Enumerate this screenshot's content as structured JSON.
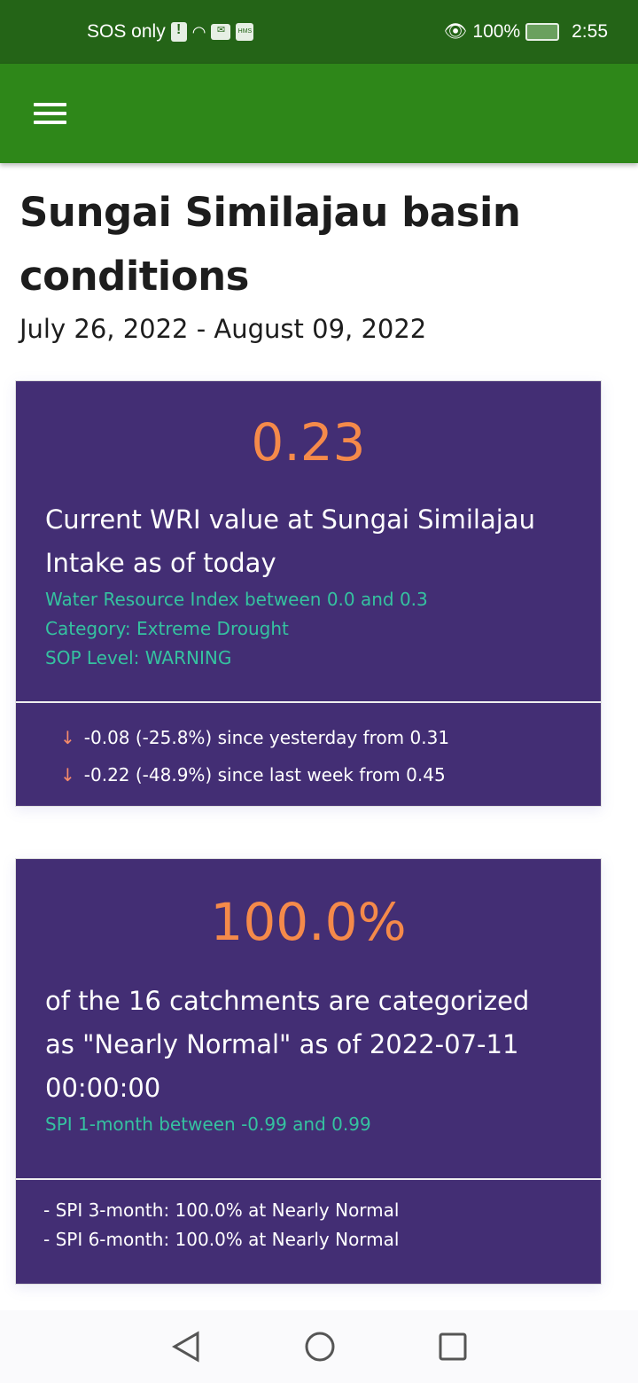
{
  "status_bar": {
    "carrier": "SOS only",
    "battery": "100%",
    "time": "2:55",
    "icons": [
      "alert-icon",
      "wifi-icon",
      "mail-icon",
      "hms-icon",
      "eye-icon",
      "battery-icon"
    ]
  },
  "app_bar": {
    "menu_icon": "hamburger-icon"
  },
  "page": {
    "title": "Sungai Similajau basin conditions",
    "date_range": "July 26, 2022 - August 09, 2022"
  },
  "wri_card": {
    "value": "0.23",
    "description": "Current WRI value at Sungai Similajau Intake as of today",
    "details": [
      "Water Resource Index between 0.0 and 0.3",
      "Category: Extreme Drought",
      "SOP Level: WARNING"
    ],
    "changes": [
      "-0.08 (-25.8%) since yesterday from 0.31",
      "-0.22 (-48.9%) since last week from 0.45"
    ],
    "arrow": "↓"
  },
  "spi_card": {
    "value": "100.0%",
    "description": "of the 16 catchments are categorized as \"Nearly Normal\" as of 2022-07-11 00:00:00",
    "details": [
      "SPI 1-month between -0.99 and 0.99"
    ],
    "others": [
      "- SPI 3-month: 100.0% at Nearly Normal",
      "- SPI 6-month: 100.0% at Nearly Normal"
    ]
  },
  "colors": {
    "status_bar": "#246417",
    "app_bar": "#2e8719",
    "card": "#432e74",
    "accent": "#f58a4a",
    "detail": "#35c2a0"
  }
}
